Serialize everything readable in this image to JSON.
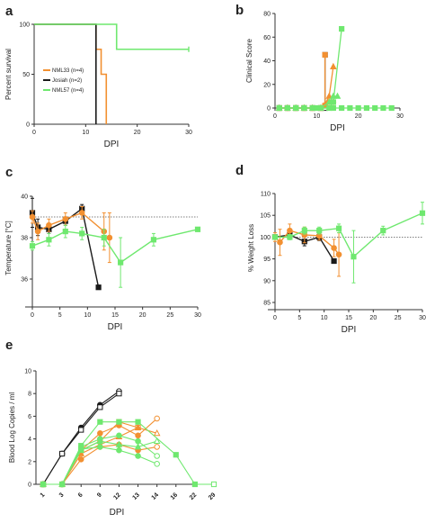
{
  "colors": {
    "orange": "#f29031",
    "black": "#1a1a1a",
    "green": "#6fe86f",
    "axis": "#333333",
    "ref": "#555555"
  },
  "chart_data": [
    {
      "panel": "a",
      "type": "line",
      "step": true,
      "xlabel": "DPI",
      "ylabel": "Percent survival",
      "xlim": [
        0,
        30
      ],
      "ylim": [
        0,
        100
      ],
      "xticks": [
        0,
        10,
        20,
        30
      ],
      "yticks": [
        0,
        50,
        100
      ],
      "legend_position": "left",
      "series": [
        {
          "name": "NML33 (n=4)",
          "color": "orange",
          "points": [
            [
              0,
              100
            ],
            [
              12,
              100
            ],
            [
              12,
              75
            ],
            [
              13,
              75
            ],
            [
              13,
              50
            ],
            [
              14,
              50
            ],
            [
              14,
              0
            ]
          ]
        },
        {
          "name": "Josiah (n=2)",
          "color": "black",
          "points": [
            [
              0,
              100
            ],
            [
              12,
              100
            ],
            [
              12,
              0
            ]
          ]
        },
        {
          "name": "NML57 (n=4)",
          "color": "green",
          "points": [
            [
              0,
              100
            ],
            [
              16,
              100
            ],
            [
              16,
              75
            ],
            [
              30,
              75
            ]
          ]
        }
      ]
    },
    {
      "panel": "b",
      "type": "line",
      "xlabel": "DPI",
      "ylabel": "Clinical Score",
      "xlim": [
        0,
        30
      ],
      "ylim": [
        0,
        80
      ],
      "xticks": [
        0,
        10,
        20,
        30
      ],
      "yticks": [
        0,
        20,
        40,
        60,
        80
      ],
      "series": [
        {
          "color": "black",
          "marker": "square",
          "points": [
            [
              1,
              0
            ],
            [
              3,
              0
            ],
            [
              5,
              0
            ],
            [
              7,
              0
            ],
            [
              9,
              0
            ],
            [
              11,
              0
            ],
            [
              12,
              0
            ],
            [
              12,
              45
            ]
          ]
        },
        {
          "color": "orange",
          "marker": "square",
          "points": [
            [
              1,
              0
            ],
            [
              3,
              0
            ],
            [
              5,
              0
            ],
            [
              7,
              0
            ],
            [
              9,
              0
            ],
            [
              11,
              0
            ],
            [
              12,
              2
            ],
            [
              12,
              45
            ]
          ]
        },
        {
          "color": "orange",
          "marker": "triangle",
          "points": [
            [
              1,
              0
            ],
            [
              3,
              0
            ],
            [
              5,
              0
            ],
            [
              7,
              0
            ],
            [
              9,
              0
            ],
            [
              11,
              0
            ],
            [
              12,
              3
            ],
            [
              13,
              10
            ],
            [
              14,
              35
            ]
          ]
        },
        {
          "color": "orange",
          "marker": "circle",
          "points": [
            [
              1,
              0
            ],
            [
              3,
              0
            ],
            [
              5,
              0
            ],
            [
              7,
              0
            ],
            [
              9,
              0
            ],
            [
              11,
              0
            ],
            [
              12,
              2
            ],
            [
              13,
              5
            ],
            [
              14,
              5
            ]
          ]
        },
        {
          "color": "green",
          "marker": "triangle",
          "points": [
            [
              1,
              0
            ],
            [
              3,
              0
            ],
            [
              5,
              0
            ],
            [
              7,
              0
            ],
            [
              9,
              0
            ],
            [
              11,
              0
            ],
            [
              13,
              5
            ],
            [
              14,
              10
            ],
            [
              15,
              10
            ]
          ]
        },
        {
          "color": "green",
          "marker": "square",
          "points": [
            [
              1,
              0
            ],
            [
              3,
              0
            ],
            [
              5,
              0
            ],
            [
              7,
              0
            ],
            [
              9,
              0
            ],
            [
              11,
              0
            ],
            [
              13,
              0
            ],
            [
              14,
              5
            ],
            [
              16,
              67
            ]
          ]
        },
        {
          "color": "green",
          "marker": "square",
          "points": [
            [
              1,
              0
            ],
            [
              5,
              0
            ],
            [
              10,
              0
            ],
            [
              14,
              0
            ],
            [
              16,
              0
            ],
            [
              18,
              0
            ],
            [
              20,
              0
            ],
            [
              22,
              0
            ],
            [
              24,
              0
            ],
            [
              26,
              0
            ],
            [
              28,
              0
            ]
          ]
        }
      ]
    },
    {
      "panel": "c",
      "type": "line",
      "xlabel": "DPI",
      "ylabel": "Temperature [°C]",
      "xlim": [
        0,
        30
      ],
      "ylim": [
        35,
        40
      ],
      "xticks": [
        0,
        5,
        10,
        15,
        20,
        25,
        30
      ],
      "yticks": [
        36,
        38,
        40
      ],
      "reference_line": 39,
      "series": [
        {
          "color": "black",
          "marker": "square",
          "points": [
            [
              0,
              39.2
            ],
            [
              1,
              38.5
            ],
            [
              3,
              38.4
            ],
            [
              6,
              38.8
            ],
            [
              9,
              39.4
            ],
            [
              12,
              35.6
            ]
          ],
          "errors": [
            0.7,
            0.4,
            0.2,
            0.2,
            0.2,
            0.1
          ]
        },
        {
          "color": "orange",
          "marker": "circle",
          "points": [
            [
              0,
              39.0
            ],
            [
              1,
              38.3
            ],
            [
              3,
              38.6
            ],
            [
              6,
              38.9
            ],
            [
              9,
              39.2
            ],
            [
              13,
              38.3
            ]
          ],
          "errors": [
            0.3,
            0.4,
            0.3,
            0.3,
            0.3,
            0.9
          ]
        },
        {
          "color": "orange",
          "marker": "circle",
          "points": [
            [
              14,
              38.0
            ]
          ],
          "errors": [
            1.2
          ]
        },
        {
          "color": "green",
          "marker": "square",
          "points": [
            [
              0,
              37.6
            ],
            [
              3,
              37.9
            ],
            [
              6,
              38.3
            ],
            [
              9,
              38.2
            ],
            [
              13,
              38.0
            ],
            [
              16,
              36.8
            ],
            [
              22,
              37.9
            ],
            [
              30,
              38.4
            ]
          ],
          "errors": [
            0.2,
            0.3,
            0.3,
            0.3,
            0.4,
            1.2,
            0.3,
            0.1
          ]
        }
      ]
    },
    {
      "panel": "d",
      "type": "line",
      "xlabel": "DPI",
      "ylabel": "% Weight Loss",
      "xlim": [
        0,
        30
      ],
      "ylim": [
        85,
        110
      ],
      "xticks": [
        0,
        5,
        10,
        15,
        20,
        25,
        30
      ],
      "yticks": [
        85,
        90,
        95,
        100,
        105,
        110
      ],
      "reference_line": 100,
      "series": [
        {
          "color": "black",
          "marker": "square",
          "points": [
            [
              0,
              100
            ],
            [
              3,
              100.5
            ],
            [
              6,
              99
            ],
            [
              9,
              100
            ],
            [
              12,
              94.5
            ]
          ],
          "errors": [
            0.5,
            0.8,
            1.0,
            0.8,
            0.4
          ]
        },
        {
          "color": "orange",
          "marker": "circle",
          "points": [
            [
              0,
              100
            ],
            [
              1,
              98.8
            ],
            [
              3,
              101.5
            ],
            [
              6,
              100.5
            ],
            [
              9,
              100.3
            ],
            [
              12,
              97.5
            ],
            [
              13,
              96
            ]
          ],
          "errors": [
            1.0,
            3.0,
            1.5,
            1.8,
            1.0,
            2.0,
            5.0
          ]
        },
        {
          "color": "green",
          "marker": "square",
          "points": [
            [
              0,
              100
            ],
            [
              3,
              100
            ],
            [
              6,
              101.5
            ],
            [
              9,
              101.5
            ],
            [
              13,
              102
            ],
            [
              16,
              95.5
            ],
            [
              22,
              101.5
            ],
            [
              30,
              105.5
            ]
          ],
          "errors": [
            0.5,
            0.6,
            0.8,
            0.8,
            1.0,
            6.0,
            1.0,
            2.5
          ]
        }
      ]
    },
    {
      "panel": "e",
      "type": "line",
      "xlabel": "DPI",
      "ylabel": "Blood Log Copies / ml",
      "categories": [
        "1",
        "3",
        "6",
        "9",
        "12",
        "13",
        "14",
        "16",
        "22",
        "29"
      ],
      "ylim": [
        0,
        10
      ],
      "yticks": [
        0,
        2,
        4,
        6,
        8,
        10
      ],
      "series": [
        {
          "color": "black",
          "marker": "circle",
          "y": [
            0,
            2.7,
            5.0,
            7.0,
            8.2,
            null,
            null,
            null,
            null,
            null
          ]
        },
        {
          "color": "black",
          "marker": "square",
          "y": [
            0,
            2.7,
            4.8,
            6.8,
            8.0,
            null,
            null,
            null,
            null,
            null
          ]
        },
        {
          "color": "orange",
          "marker": "circle",
          "y": [
            0,
            0,
            3.0,
            4.5,
            5.2,
            4.3,
            5.8,
            null,
            null,
            null
          ]
        },
        {
          "color": "orange",
          "marker": "square",
          "y": [
            0,
            0,
            3.0,
            3.8,
            5.5,
            5.0,
            null,
            null,
            null,
            null
          ]
        },
        {
          "color": "orange",
          "marker": "triangle",
          "y": [
            0,
            0,
            2.7,
            3.5,
            4.2,
            5.0,
            4.5,
            null,
            null,
            null
          ]
        },
        {
          "color": "orange",
          "marker": "circle",
          "y": [
            0,
            0,
            2.2,
            3.3,
            3.5,
            3.0,
            3.3,
            null,
            null,
            null
          ]
        },
        {
          "color": "green",
          "marker": "square",
          "y": [
            0,
            0,
            3.4,
            5.5,
            5.5,
            5.5,
            null,
            2.6,
            0,
            0
          ]
        },
        {
          "color": "green",
          "marker": "circle",
          "y": [
            0,
            0,
            3.3,
            4.0,
            4.3,
            3.8,
            2.5,
            null,
            null,
            null
          ]
        },
        {
          "color": "green",
          "marker": "triangle",
          "y": [
            0,
            0,
            3.0,
            3.8,
            3.5,
            3.3,
            3.8,
            null,
            null,
            null
          ]
        },
        {
          "color": "green",
          "marker": "circle",
          "y": [
            0,
            0,
            3.1,
            3.3,
            3.0,
            2.5,
            1.8,
            null,
            null,
            null
          ]
        }
      ]
    }
  ],
  "panel_letters": [
    "a",
    "b",
    "c",
    "d",
    "e"
  ]
}
